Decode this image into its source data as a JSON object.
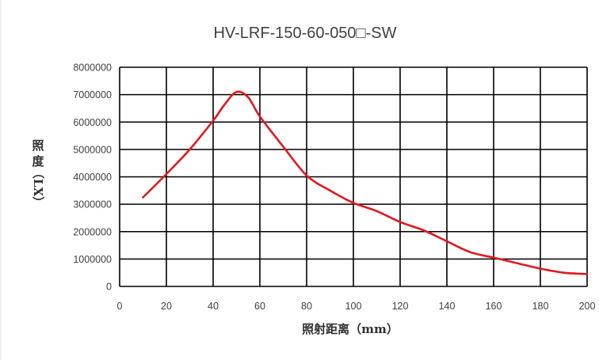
{
  "chart_data": {
    "type": "line",
    "title": "HV-LRF-150-60-050□-SW",
    "xlabel": "照射距离（mm）",
    "ylabel_chars": [
      "照",
      "度",
      "（LX）"
    ],
    "xlim": [
      0,
      200
    ],
    "ylim": [
      0,
      8000000
    ],
    "x_ticks": [
      0,
      20,
      40,
      60,
      80,
      100,
      120,
      140,
      160,
      180,
      200
    ],
    "y_ticks": [
      0,
      1000000,
      2000000,
      3000000,
      4000000,
      5000000,
      6000000,
      7000000,
      8000000
    ],
    "grid": true,
    "legend": "none",
    "series": [
      {
        "color": "#e0191f",
        "x": [
          10,
          20,
          30,
          40,
          45,
          50,
          55,
          60,
          70,
          80,
          90,
          100,
          110,
          120,
          130,
          140,
          150,
          160,
          170,
          180,
          190,
          200
        ],
        "y": [
          3250000,
          4100000,
          5000000,
          6050000,
          6650000,
          7100000,
          6900000,
          6200000,
          5100000,
          4050000,
          3500000,
          3050000,
          2750000,
          2350000,
          2050000,
          1650000,
          1250000,
          1050000,
          850000,
          650000,
          500000,
          450000
        ]
      }
    ]
  }
}
